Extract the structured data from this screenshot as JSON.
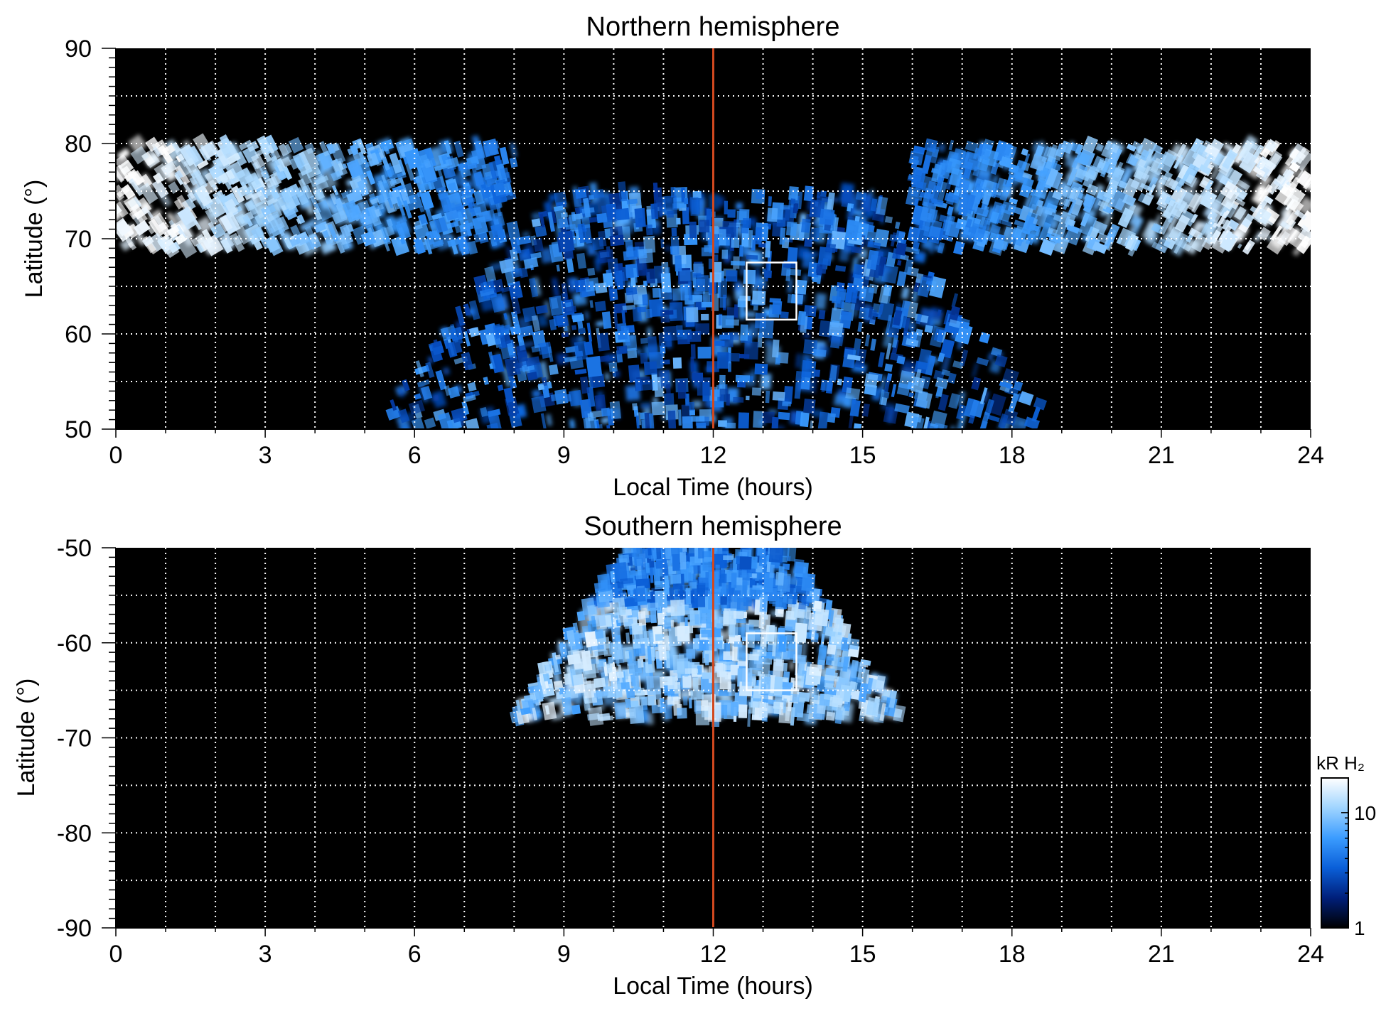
{
  "chart_data": [
    {
      "type": "heatmap",
      "title": "Northern hemisphere",
      "xlabel": "Local Time (hours)",
      "ylabel": "Latitude (°)",
      "xlim": [
        0,
        24
      ],
      "ylim": [
        50,
        90
      ],
      "x_ticks": [
        "0",
        "3",
        "6",
        "9",
        "12",
        "15",
        "18",
        "21",
        "24"
      ],
      "y_ticks": [
        "50",
        "60",
        "70",
        "80",
        "90"
      ],
      "x_grid_step_hours": 1,
      "y_grid_step_deg": 5,
      "grid": "dotted white",
      "reference_line": {
        "local_time": 12,
        "color": "#d2491f"
      },
      "highlight_box": {
        "local_time": [
          12.67,
          13.67
        ],
        "latitude": [
          61.5,
          67.5
        ],
        "color": "#ffffff"
      },
      "regions": [
        {
          "description": "auroral oval, bright at night side",
          "lt_center": 0,
          "lt_halfwidth": 8,
          "lat_min": 69,
          "lat_max": 80
        },
        {
          "description": "diffuse emission band",
          "lt_center": 12,
          "lt_halfwidth": 7,
          "lat_min": 50,
          "lat_max": 75
        }
      ]
    },
    {
      "type": "heatmap",
      "title": "Southern hemisphere",
      "xlabel": "Local Time (hours)",
      "ylabel": "Latitude (°)",
      "xlim": [
        0,
        24
      ],
      "ylim": [
        -90,
        -50
      ],
      "x_ticks": [
        "0",
        "3",
        "6",
        "9",
        "12",
        "15",
        "18",
        "21",
        "24"
      ],
      "y_ticks": [
        "-50",
        "-60",
        "-70",
        "-80",
        "-90"
      ],
      "x_grid_step_hours": 1,
      "y_grid_step_deg": 5,
      "grid": "dotted white",
      "reference_line": {
        "local_time": 12,
        "color": "#d2491f"
      },
      "highlight_box": {
        "local_time": [
          12.67,
          13.67
        ],
        "latitude": [
          -65,
          -59
        ]
      },
      "regions": [
        {
          "description": "auroral arc",
          "lt_center": 11.9,
          "lt_halfwidth": 4,
          "lat_min": -68,
          "lat_max": -50
        }
      ]
    }
  ],
  "colorbar": {
    "label": "kR H₂",
    "scale": "log",
    "range": [
      1,
      20
    ],
    "ticks": [
      "10",
      "1"
    ],
    "colors": [
      "#000000",
      "#001f7a",
      "#0a5fd8",
      "#3b9cff",
      "#9fd4ff",
      "#ffffff"
    ]
  }
}
